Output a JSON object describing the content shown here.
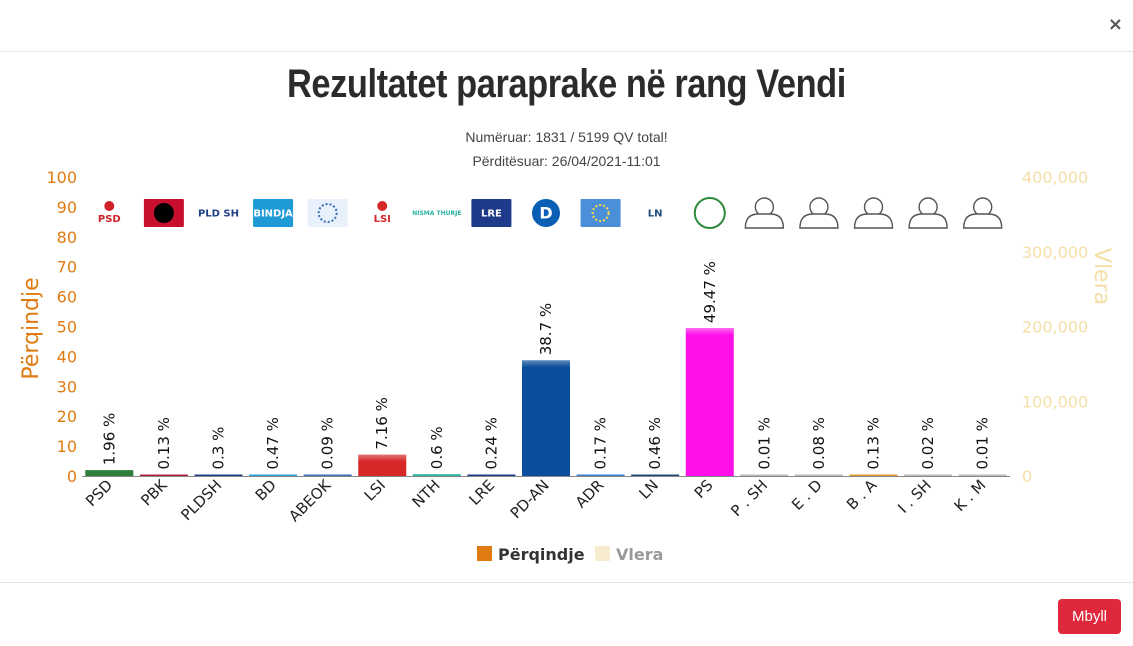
{
  "modal": {
    "close_icon_glyph": "×",
    "close_button_label": "Mbyll"
  },
  "colors": {
    "left_axis": "#e07b12",
    "right_axis": "#f5dfa6",
    "close_button": "#e0283c"
  },
  "chart_data": {
    "type": "bar",
    "title": "Rezultatet paraprake në rang Vendi",
    "subtitle_lines": [
      "Numëruar: 1831 / 5199 QV total!",
      "Përditësuar: 26/04/2021-11:01"
    ],
    "ylabel": "Përqindje",
    "y2label": "Vlera",
    "ylim": [
      0,
      100
    ],
    "yticks": [
      "0",
      "10",
      "20",
      "30",
      "40",
      "50",
      "60",
      "70",
      "80",
      "90",
      "100"
    ],
    "y2lim": [
      0,
      400000
    ],
    "y2ticks": [
      "0",
      "100,000",
      "200,000",
      "300,000",
      "400,000"
    ],
    "categories": [
      "PSD",
      "PBK",
      "PLDSH",
      "BD",
      "ABEOK",
      "LSI",
      "NTH",
      "LRE",
      "PD-AN",
      "ADR",
      "LN",
      "PS",
      "P . SH",
      "E . D",
      "B . A",
      "I . SH",
      "K . M"
    ],
    "values": [
      1.96,
      0.13,
      0.3,
      0.47,
      0.09,
      7.16,
      0.6,
      0.24,
      38.7,
      0.17,
      0.46,
      49.47,
      0.01,
      0.08,
      0.13,
      0.02,
      0.01
    ],
    "data_labels": [
      "1.96 %",
      "0.13 %",
      "0.3 %",
      "0.47 %",
      "0.09 %",
      "7.16 %",
      "0.6 %",
      "0.24 %",
      "38.7 %",
      "0.17 %",
      "0.46 %",
      "49.47 %",
      "0.01 %",
      "0.08 %",
      "0.13 %",
      "0.02 %",
      "0.01 %"
    ],
    "bar_colors": [
      "#2e7d3a",
      "#b0223a",
      "#1e3f8a",
      "#2a9fd8",
      "#3a6fb8",
      "#d62828",
      "#2bb3a0",
      "#1e3a8a",
      "#0a4e9b",
      "#3b7fd1",
      "#1f4a78",
      "#ff10e8",
      "#bbbbbb",
      "#bbbbbb",
      "#d89a2a",
      "#bbbbbb",
      "#bbbbbb"
    ],
    "logos": [
      {
        "icon": "psd-rose-icon",
        "text": "PSD",
        "bg": "#ffffff",
        "fg": "#d0202a"
      },
      {
        "icon": "pbk-eagle-icon",
        "text": "",
        "bg": "#c8102e",
        "fg": "#000000"
      },
      {
        "icon": "pldsh-logo-icon",
        "text": "PLD SH",
        "bg": "#ffffff",
        "fg": "#1e3f8a"
      },
      {
        "icon": "bindja-logo-icon",
        "text": "BINDJA",
        "bg": "#1e9ad6",
        "fg": "#ffffff"
      },
      {
        "icon": "abeok-stars-icon",
        "text": "",
        "bg": "#e8f0fb",
        "fg": "#3a6fb8"
      },
      {
        "icon": "lsi-rose-icon",
        "text": "LSI",
        "bg": "#ffffff",
        "fg": "#d62828"
      },
      {
        "icon": "nisma-thurje-icon",
        "text": "NISMA THURJE",
        "bg": "#ffffff",
        "fg": "#2bb3a0"
      },
      {
        "icon": "lre-logo-icon",
        "text": "LRE",
        "bg": "#1e3a8a",
        "fg": "#ffffff"
      },
      {
        "icon": "pd-logo-icon",
        "text": "D",
        "bg": "#0a5fb4",
        "fg": "#ffffff"
      },
      {
        "icon": "adr-logo-icon",
        "text": "",
        "bg": "#4a8fd8",
        "fg": "#ffd84a"
      },
      {
        "icon": "ln-logo-icon",
        "text": "LN",
        "bg": "#ffffff",
        "fg": "#1f4a78"
      },
      {
        "icon": "ps-logo-icon",
        "text": "",
        "bg": "#ffffff",
        "fg": "#2e8b3a"
      },
      {
        "icon": "user-placeholder-icon",
        "text": "",
        "bg": "",
        "fg": "#555555"
      },
      {
        "icon": "user-placeholder-icon",
        "text": "",
        "bg": "",
        "fg": "#555555"
      },
      {
        "icon": "user-placeholder-icon",
        "text": "",
        "bg": "",
        "fg": "#555555"
      },
      {
        "icon": "user-placeholder-icon",
        "text": "",
        "bg": "",
        "fg": "#555555"
      },
      {
        "icon": "user-placeholder-icon",
        "text": "",
        "bg": "",
        "fg": "#555555"
      }
    ],
    "legend": [
      {
        "name": "Përqindje",
        "color": "#e07b12",
        "active": true
      },
      {
        "name": "Vlera",
        "color": "#f8ecd0",
        "active": false
      }
    ],
    "legend_position": "bottom-center",
    "grid": false
  }
}
